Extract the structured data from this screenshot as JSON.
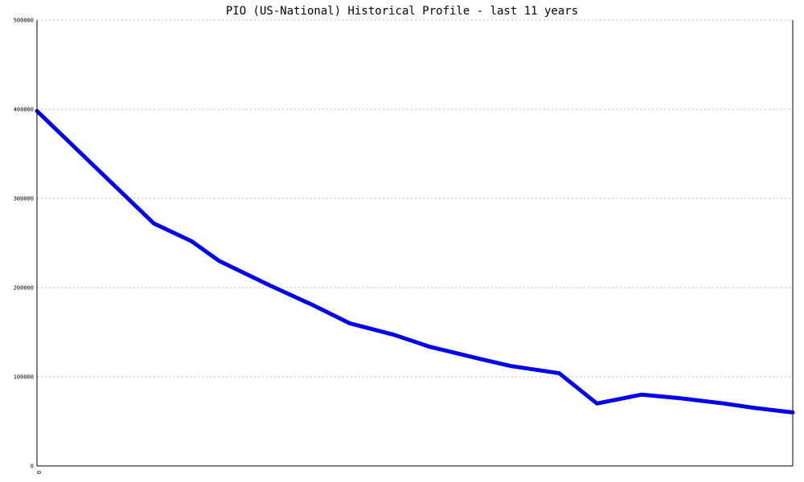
{
  "chart_data": {
    "type": "line",
    "title": "PIO (US-National) Historical Profile - last 11 years",
    "xlabel": "",
    "ylabel": "",
    "ylim": [
      0,
      500000
    ],
    "y_ticks": [
      0,
      100000,
      200000,
      300000,
      400000,
      500000
    ],
    "y_tick_labels": [
      "0",
      "100000",
      "200000",
      "300000",
      "400000",
      "500000"
    ],
    "x_tick_labels": [
      "0"
    ],
    "x": [
      0,
      1.7,
      2.25,
      2.65,
      3.4,
      4.0,
      4.55,
      5.2,
      5.7,
      6.45,
      6.9,
      7.6,
      8.15,
      8.8,
      9.35,
      10.0,
      10.45,
      11.0
    ],
    "grid": true,
    "series": [
      {
        "color": "#0000ee",
        "values": [
          398000,
          272000,
          252000,
          230000,
          202000,
          181000,
          160000,
          147000,
          134000,
          120000,
          112000,
          104000,
          70000,
          80000,
          76000,
          70000,
          65000,
          60000
        ]
      }
    ]
  }
}
